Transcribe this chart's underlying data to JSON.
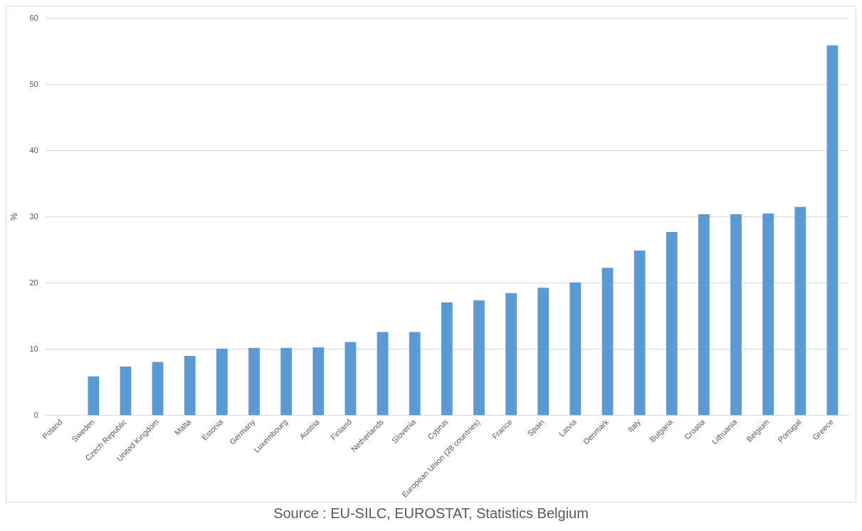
{
  "chart_data": {
    "type": "bar",
    "ylabel": "%",
    "categories": [
      "Poland",
      "Sweden",
      "Czech Republic",
      "United Kingdom",
      "Malta",
      "Estonia",
      "Germany",
      "Luxembourg",
      "Austria",
      "Finland",
      "Netherlands",
      "Slovenia",
      "Cyprus",
      "European Union (28 countries)",
      "France",
      "Spain",
      "Latvia",
      "Denmark",
      "Italy",
      "Bulgaria",
      "Croatia",
      "Lithuania",
      "Belgium",
      "Portugal",
      "Greece"
    ],
    "values": [
      0,
      5.9,
      7.4,
      8.1,
      9.0,
      10.1,
      10.2,
      10.2,
      10.3,
      11.1,
      12.6,
      12.6,
      17.1,
      17.4,
      18.5,
      19.3,
      20.1,
      22.3,
      24.9,
      27.7,
      30.4,
      30.4,
      30.5,
      31.5,
      55.9
    ],
    "color": "#5b9bd5",
    "ylim": [
      0,
      60
    ],
    "yticks": [
      0,
      10,
      20,
      30,
      40,
      50,
      60
    ],
    "grid": "y",
    "annotations": [
      "Source : EU-SILC, EUROSTAT, Statistics Belgium"
    ]
  }
}
